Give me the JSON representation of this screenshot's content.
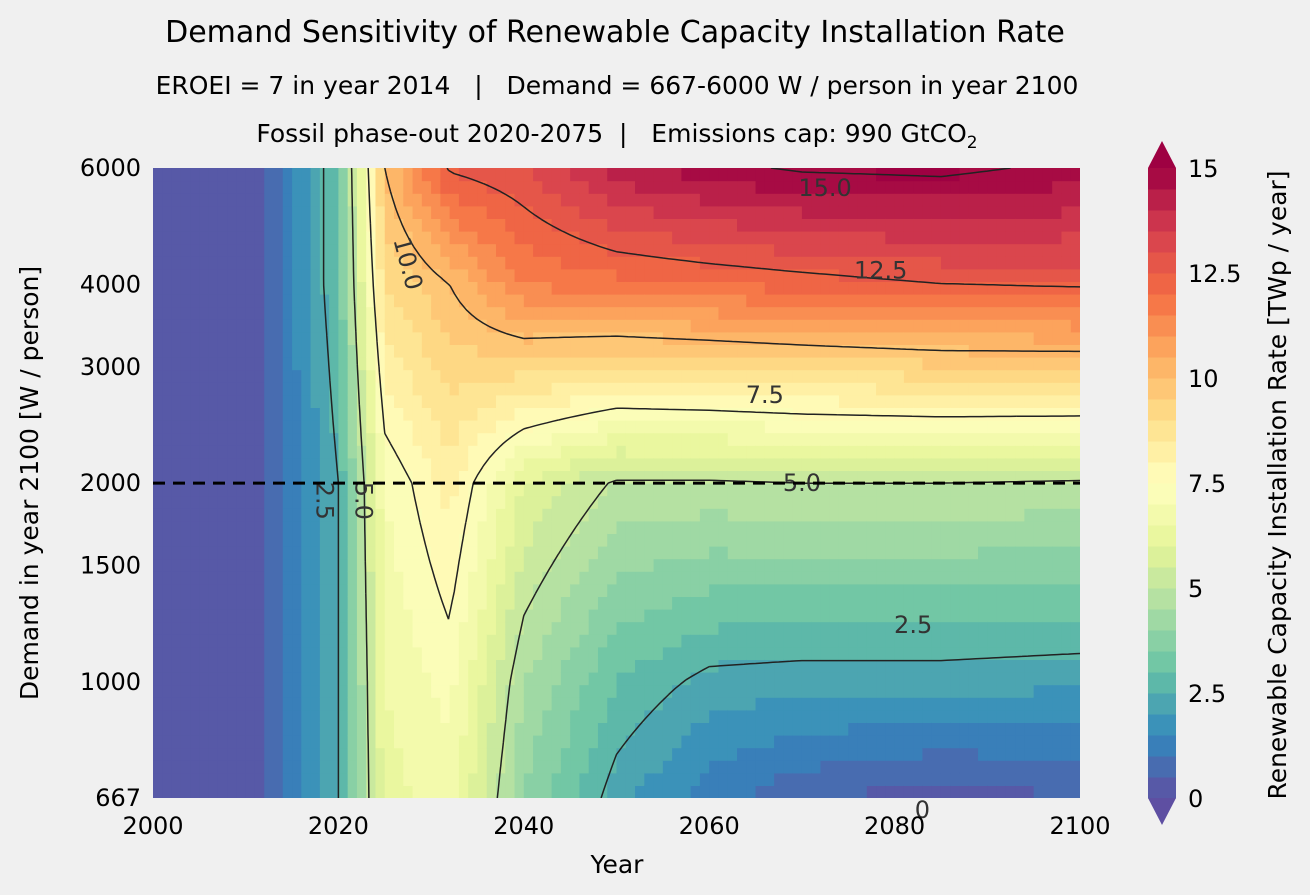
{
  "chart_data": {
    "type": "heatmap",
    "title": "Demand Sensitivity of Renewable Capacity Installation Rate",
    "subtitle_1": "EROEI = 7 in year 2014   |   Demand = 667-6000 W / person in year 2100",
    "subtitle_2": "Fossil phase-out 2020-2075  |   Emissions cap: 990 GtCO",
    "subtitle_2_sub": "2",
    "xlabel": "Year",
    "ylabel": "Demand in year 2100 [W / person]",
    "colorbar_label": "Renewable Capacity Installation Rate [TWp / year]",
    "xlim": [
      2000,
      2100
    ],
    "ylim": [
      667,
      6000
    ],
    "yscale": "log",
    "x_ticks": [
      "2000",
      "2020",
      "2040",
      "2060",
      "2080",
      "2100"
    ],
    "y_ticks": [
      "667",
      "1000",
      "1500",
      "2000",
      "3000",
      "4000",
      "6000"
    ],
    "y_tick_values": [
      667,
      1000,
      1500,
      2000,
      3000,
      4000,
      6000
    ],
    "colorbar_range": [
      0,
      15
    ],
    "colorbar_ticks": [
      "0",
      "2.5",
      "5",
      "7.5",
      "10",
      "12.5",
      "15"
    ],
    "colorbar_extend": "both",
    "colormap": "Spectral_r",
    "contour_levels": [
      2.5,
      5.0,
      7.5,
      10.0,
      12.5,
      15.0
    ],
    "contour_labels": [
      "2.5",
      "5.0",
      "7.5",
      "10.0",
      "12.5",
      "15.0",
      "2.5",
      "5.0",
      "0"
    ],
    "reference_line": {
      "demand": 2000,
      "style": "dashed"
    },
    "grid": false,
    "representative_values": {
      "years": [
        2000,
        2012,
        2020,
        2025,
        2032,
        2040,
        2050,
        2060,
        2070,
        2085,
        2100
      ],
      "demand_6000": [
        0.3,
        0.5,
        3,
        10,
        12.6,
        13,
        14.3,
        14.8,
        15.1,
        15.2,
        14.8
      ],
      "demand_4000": [
        0.3,
        0.5,
        3,
        9,
        10,
        11.5,
        11.8,
        12,
        12.2,
        12.5,
        12.6
      ],
      "demand_2000": [
        0.3,
        0.5,
        2.5,
        7,
        8.2,
        6,
        4.9,
        4.9,
        5.0,
        5.0,
        4.9
      ],
      "demand_1000": [
        0.3,
        0.5,
        2.5,
        6.5,
        7.2,
        4.5,
        3,
        2.3,
        2.2,
        2.2,
        2.1
      ],
      "demand_667": [
        0.3,
        0.5,
        2.5,
        6.3,
        6.8,
        4,
        2.2,
        1.2,
        0.6,
        0.2,
        0.5
      ]
    }
  }
}
